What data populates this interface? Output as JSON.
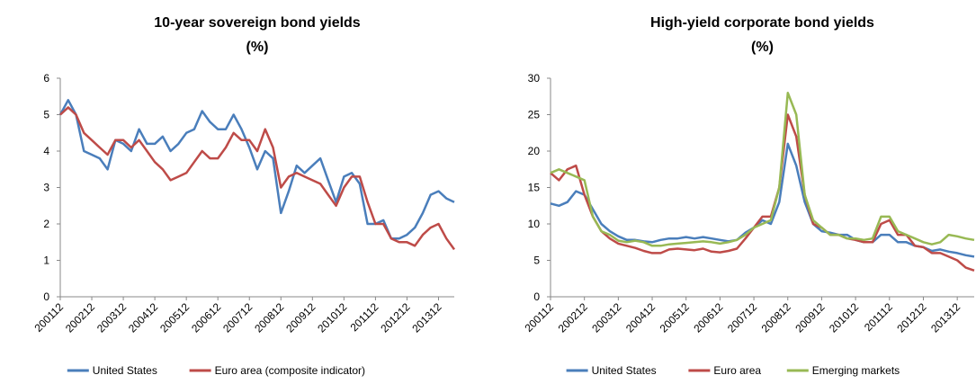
{
  "chart_data": [
    {
      "type": "line",
      "title": "10-year sovereign bond yields",
      "subtitle": "(%)",
      "categories": [
        "200112",
        null,
        null,
        null,
        "200212",
        null,
        null,
        null,
        "200312",
        null,
        null,
        null,
        "200412",
        null,
        null,
        null,
        "200512",
        null,
        null,
        null,
        "200612",
        null,
        null,
        null,
        "200712",
        null,
        null,
        null,
        "200812",
        null,
        null,
        null,
        "200912",
        null,
        null,
        null,
        "201012",
        null,
        null,
        null,
        "201112",
        null,
        null,
        null,
        "201212",
        null,
        null,
        null,
        "201312",
        null,
        null
      ],
      "ylim": [
        0,
        6
      ],
      "yticks": [
        0,
        1,
        2,
        3,
        4,
        5,
        6
      ],
      "series": [
        {
          "name": "United States",
          "color": "#4a7ebb",
          "values": [
            5.0,
            5.4,
            5.0,
            4.0,
            3.9,
            3.8,
            3.5,
            4.3,
            4.2,
            4.0,
            4.6,
            4.2,
            4.2,
            4.4,
            4.0,
            4.2,
            4.5,
            4.6,
            5.1,
            4.8,
            4.6,
            4.6,
            5.0,
            4.6,
            4.1,
            3.5,
            4.0,
            3.8,
            2.3,
            2.9,
            3.6,
            3.4,
            3.6,
            3.8,
            3.2,
            2.6,
            3.3,
            3.4,
            3.1,
            2.0,
            2.0,
            2.1,
            1.6,
            1.6,
            1.7,
            1.9,
            2.3,
            2.8,
            2.9,
            2.7,
            2.6
          ]
        },
        {
          "name": "Euro area (composite indicator)",
          "color": "#be4b48",
          "values": [
            5.0,
            5.2,
            5.0,
            4.5,
            4.3,
            4.1,
            3.9,
            4.3,
            4.3,
            4.1,
            4.3,
            4.0,
            3.7,
            3.5,
            3.2,
            3.3,
            3.4,
            3.7,
            4.0,
            3.8,
            3.8,
            4.1,
            4.5,
            4.3,
            4.3,
            4.0,
            4.6,
            4.1,
            3.0,
            3.3,
            3.4,
            3.3,
            3.2,
            3.1,
            2.8,
            2.5,
            3.0,
            3.3,
            3.3,
            2.6,
            2.0,
            2.0,
            1.6,
            1.5,
            1.5,
            1.4,
            1.7,
            1.9,
            2.0,
            1.6,
            1.3
          ]
        }
      ]
    },
    {
      "type": "line",
      "title": "High-yield corporate bond yields",
      "subtitle": "(%)",
      "categories": [
        "200112",
        null,
        null,
        null,
        "200212",
        null,
        null,
        null,
        "200312",
        null,
        null,
        null,
        "200412",
        null,
        null,
        null,
        "200512",
        null,
        null,
        null,
        "200612",
        null,
        null,
        null,
        "200712",
        null,
        null,
        null,
        "200812",
        null,
        null,
        null,
        "200912",
        null,
        null,
        null,
        "201012",
        null,
        null,
        null,
        "201112",
        null,
        null,
        null,
        "201212",
        null,
        null,
        null,
        "201312",
        null,
        null
      ],
      "ylim": [
        0,
        30
      ],
      "yticks": [
        0,
        5,
        10,
        15,
        20,
        25,
        30
      ],
      "series": [
        {
          "name": "United States",
          "color": "#4a7ebb",
          "values": [
            12.8,
            12.5,
            13,
            14.5,
            14,
            12,
            10,
            9,
            8.3,
            7.8,
            7.8,
            7.6,
            7.5,
            7.8,
            8,
            8,
            8.2,
            8,
            8.2,
            8,
            7.8,
            7.6,
            7.8,
            8.8,
            9.5,
            10.5,
            10,
            13,
            21,
            18,
            13,
            10,
            9,
            8.8,
            8.5,
            8.5,
            7.8,
            7.5,
            7.5,
            8.5,
            8.5,
            7.5,
            7.5,
            7,
            6.8,
            6.3,
            6.5,
            6.2,
            6,
            5.7,
            5.5
          ]
        },
        {
          "name": "Euro area",
          "color": "#be4b48",
          "values": [
            17,
            16,
            17.5,
            18,
            14,
            11,
            9,
            8,
            7.3,
            7,
            6.7,
            6.3,
            6,
            6,
            6.5,
            6.6,
            6.5,
            6.4,
            6.6,
            6.2,
            6.1,
            6.3,
            6.6,
            8,
            9.5,
            11,
            11,
            15,
            25,
            22,
            14,
            10,
            9.5,
            8.5,
            8.5,
            8,
            7.8,
            7.5,
            7.5,
            10,
            10.5,
            8.5,
            8.5,
            7,
            6.8,
            6,
            6,
            5.5,
            5,
            4,
            3.6
          ]
        },
        {
          "name": "Emerging markets",
          "color": "#98b954",
          "values": [
            17,
            17.5,
            17,
            16.5,
            16,
            11,
            9,
            8.5,
            7.7,
            7.5,
            7.7,
            7.5,
            7,
            7,
            7.2,
            7.3,
            7.4,
            7.5,
            7.6,
            7.5,
            7.3,
            7.5,
            7.8,
            8.5,
            9.5,
            10,
            10.5,
            15,
            28,
            25,
            14,
            10.5,
            9.5,
            8.5,
            8.5,
            8,
            8,
            7.8,
            8,
            11,
            11,
            9,
            8.5,
            8,
            7.5,
            7.2,
            7.5,
            8.5,
            8.3,
            8,
            7.8
          ]
        }
      ]
    }
  ]
}
